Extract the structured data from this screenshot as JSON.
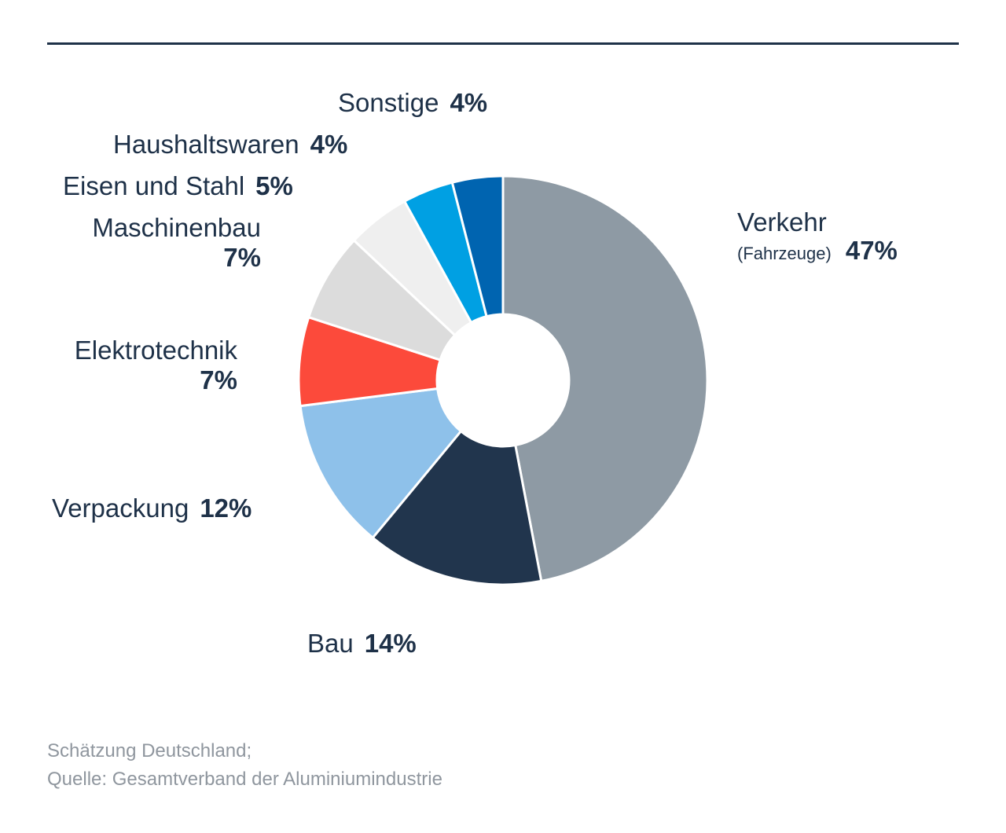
{
  "chart_data": {
    "type": "pie",
    "donut": true,
    "slices": [
      {
        "label": "Verkehr",
        "sublabel": "(Fahrzeuge)",
        "value": 47,
        "value_label": "47%",
        "color": "#8e9aa4"
      },
      {
        "label": "Bau",
        "value": 14,
        "value_label": "14%",
        "color": "#21354d"
      },
      {
        "label": "Verpackung",
        "value": 12,
        "value_label": "12%",
        "color": "#8ec1ea"
      },
      {
        "label": "Elektrotechnik",
        "value": 7,
        "value_label": "7%",
        "color": "#fc4a3b"
      },
      {
        "label": "Maschinenbau",
        "value": 7,
        "value_label": "7%",
        "color": "#dcdcdc"
      },
      {
        "label": "Eisen und Stahl",
        "value": 5,
        "value_label": "5%",
        "color": "#efefef"
      },
      {
        "label": "Haushaltswaren",
        "value": 4,
        "value_label": "4%",
        "color": "#00a0e3"
      },
      {
        "label": "Sonstige",
        "value": 4,
        "value_label": "4%",
        "color": "#0064b0"
      }
    ]
  },
  "source": {
    "line1": "Schätzung Deutschland;",
    "line2": "Quelle: Gesamtverband der Aluminiumindustrie"
  }
}
